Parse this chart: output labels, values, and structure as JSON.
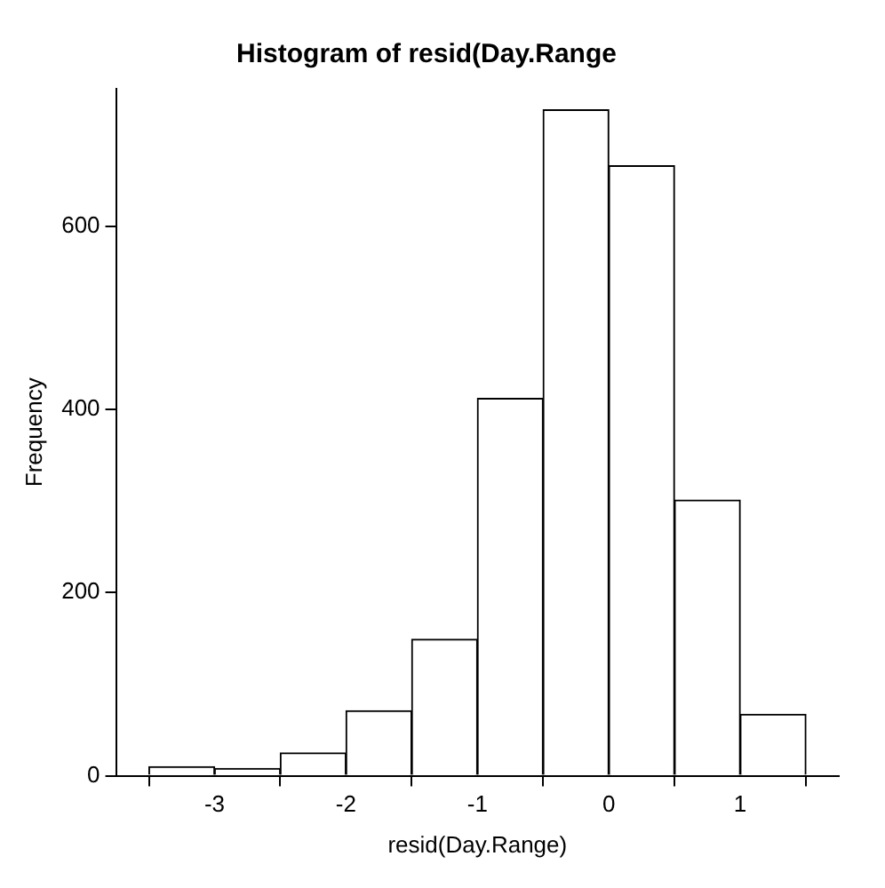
{
  "chart_data": {
    "type": "histogram",
    "title": "Histogram of resid(Day.Range",
    "xlabel": "resid(Day.Range)",
    "ylabel": "Frequency",
    "bins": [
      -3.5,
      -3,
      -2.5,
      -2,
      -1.5,
      -1,
      -0.5,
      0,
      0.5,
      1,
      1.5
    ],
    "values": [
      10,
      8,
      25,
      71,
      149,
      412,
      727,
      666,
      301,
      67
    ],
    "color": "#ffffff",
    "xlim": [
      -3.75,
      1.75
    ],
    "xticks": [
      -3,
      -2,
      -1,
      0,
      1
    ],
    "ylim": [
      0,
      750
    ],
    "yticks": [
      0,
      200,
      400,
      600
    ],
    "grid": false,
    "legend": false
  }
}
